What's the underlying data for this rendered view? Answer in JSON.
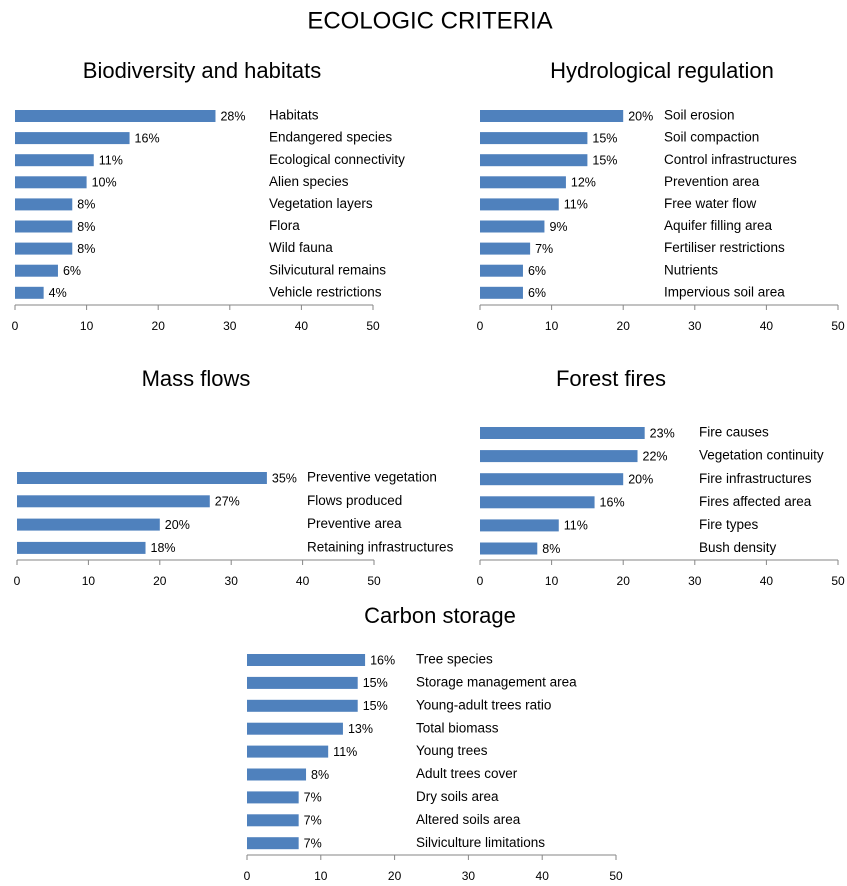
{
  "title": "ECOLOGIC CRITERIA",
  "chart_data": [
    {
      "type": "barh",
      "title": "Biodiversity and habitats",
      "categories": [
        "Habitats",
        "Endangered species",
        "Ecological connectivity",
        "Alien species",
        "Vegetation layers",
        "Flora",
        "Wild fauna",
        "Silvicutural remains",
        "Vehicle restrictions"
      ],
      "values": [
        28,
        16,
        11,
        10,
        8,
        8,
        8,
        6,
        4
      ],
      "value_labels": [
        "28%",
        "16%",
        "11%",
        "10%",
        "8%",
        "8%",
        "8%",
        "6%",
        "4%"
      ],
      "color": "#4f81bd",
      "xlim": [
        0,
        50
      ],
      "xticks": [
        0,
        10,
        20,
        30,
        40,
        50
      ]
    },
    {
      "type": "barh",
      "title": "Hydrological regulation",
      "categories": [
        "Soil erosion",
        "Soil compaction",
        "Control infrastructures",
        "Prevention area",
        "Free water flow",
        "Aquifer filling area",
        "Fertiliser restrictions",
        "Nutrients",
        "Impervious soil area"
      ],
      "values": [
        20,
        15,
        15,
        12,
        11,
        9,
        7,
        6,
        6
      ],
      "value_labels": [
        "20%",
        "15%",
        "15%",
        "12%",
        "11%",
        "9%",
        "7%",
        "6%",
        "6%"
      ],
      "color": "#4f81bd",
      "xlim": [
        0,
        50
      ],
      "xticks": [
        0,
        10,
        20,
        30,
        40,
        50
      ]
    },
    {
      "type": "barh",
      "title": "Mass flows",
      "categories": [
        "Preventive vegetation",
        "Flows produced",
        "Preventive area",
        "Retaining infrastructures"
      ],
      "values": [
        35,
        27,
        20,
        18
      ],
      "value_labels": [
        "35%",
        "27%",
        "20%",
        "18%"
      ],
      "color": "#4f81bd",
      "xlim": [
        0,
        50
      ],
      "xticks": [
        0,
        10,
        20,
        30,
        40,
        50
      ]
    },
    {
      "type": "barh",
      "title": "Forest fires",
      "categories": [
        "Fire causes",
        "Vegetation continuity",
        "Fire infrastructures",
        "Fires affected area",
        "Fire types",
        "Bush density"
      ],
      "values": [
        23,
        22,
        20,
        16,
        11,
        8
      ],
      "value_labels": [
        "23%",
        "22%",
        "20%",
        "16%",
        "11%",
        "8%"
      ],
      "color": "#4f81bd",
      "xlim": [
        0,
        50
      ],
      "xticks": [
        0,
        10,
        20,
        30,
        40,
        50
      ]
    },
    {
      "type": "barh",
      "title": "Carbon storage",
      "categories": [
        "Tree species",
        "Storage management area",
        "Young-adult trees ratio",
        "Total biomass",
        "Young trees",
        "Adult trees cover",
        "Dry soils area",
        "Altered soils area",
        "Silviculture limitations"
      ],
      "values": [
        16,
        15,
        15,
        13,
        11,
        8,
        7,
        7,
        7
      ],
      "value_labels": [
        "16%",
        "15%",
        "15%",
        "13%",
        "11%",
        "8%",
        "7%",
        "7%",
        "7%"
      ],
      "color": "#4f81bd",
      "xlim": [
        0,
        50
      ],
      "xticks": [
        0,
        10,
        20,
        30,
        40,
        50
      ]
    }
  ]
}
